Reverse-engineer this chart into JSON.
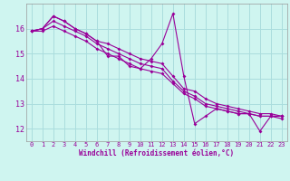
{
  "xlabel": "Windchill (Refroidissement éolien,°C)",
  "bg_color": "#cff5f0",
  "grid_color": "#aadddd",
  "line_color": "#990099",
  "x": [
    0,
    1,
    2,
    3,
    4,
    5,
    6,
    7,
    8,
    9,
    10,
    11,
    12,
    13,
    14,
    15,
    16,
    17,
    18,
    19,
    20,
    21,
    22,
    23
  ],
  "series1": [
    15.9,
    16.0,
    16.5,
    16.3,
    16.0,
    15.8,
    15.5,
    14.9,
    14.9,
    14.5,
    14.4,
    14.8,
    15.4,
    16.6,
    14.1,
    12.2,
    12.5,
    12.8,
    12.7,
    12.6,
    12.6,
    11.9,
    12.5,
    12.5
  ],
  "series2": [
    15.9,
    16.0,
    16.5,
    16.3,
    16.0,
    15.8,
    15.5,
    15.4,
    15.2,
    15.0,
    14.8,
    14.7,
    14.6,
    14.1,
    13.6,
    13.5,
    13.2,
    13.0,
    12.9,
    12.8,
    12.7,
    12.6,
    12.6,
    12.5
  ],
  "series3": [
    15.9,
    16.0,
    16.3,
    16.1,
    15.9,
    15.7,
    15.4,
    15.2,
    15.0,
    14.8,
    14.6,
    14.5,
    14.4,
    13.9,
    13.5,
    13.3,
    13.0,
    12.9,
    12.8,
    12.7,
    12.6,
    12.5,
    12.5,
    12.5
  ],
  "series4": [
    15.9,
    15.9,
    16.1,
    15.9,
    15.7,
    15.5,
    15.2,
    15.0,
    14.8,
    14.6,
    14.4,
    14.3,
    14.2,
    13.8,
    13.4,
    13.2,
    12.9,
    12.8,
    12.7,
    12.6,
    12.6,
    12.5,
    12.5,
    12.4
  ],
  "ylim": [
    11.5,
    17.0
  ],
  "xlim_min": -0.5,
  "xlim_max": 23.5,
  "yticks": [
    12,
    13,
    14,
    15,
    16
  ],
  "xticks": [
    0,
    1,
    2,
    3,
    4,
    5,
    6,
    7,
    8,
    9,
    10,
    11,
    12,
    13,
    14,
    15,
    16,
    17,
    18,
    19,
    20,
    21,
    22,
    23
  ],
  "tick_fontsize": 5,
  "xlabel_fontsize": 5.5,
  "marker_size": 2.0,
  "line_width": 0.8
}
